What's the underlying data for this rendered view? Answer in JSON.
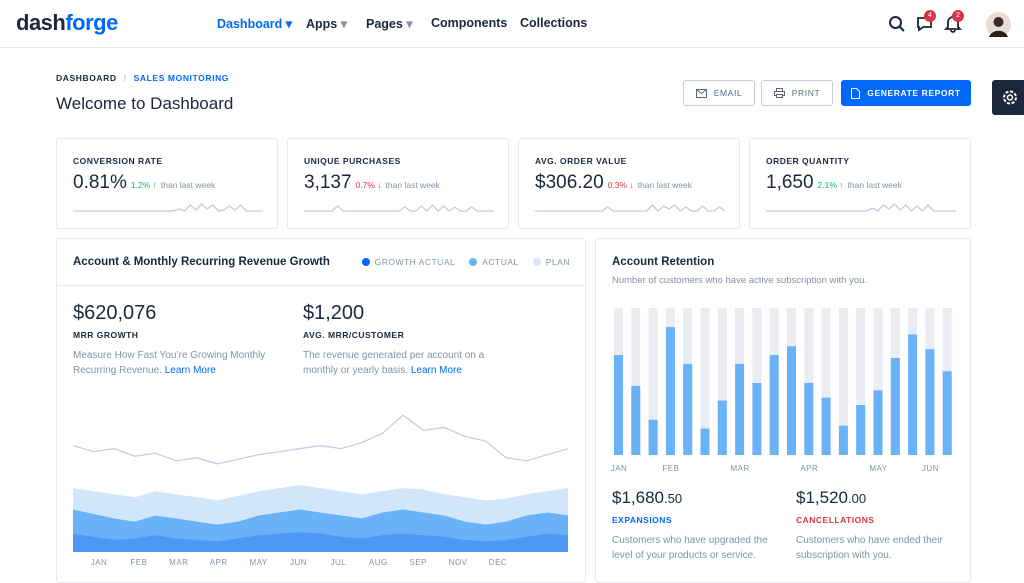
{
  "header": {
    "logo": [
      "dash",
      "forge"
    ],
    "nav": [
      "Dashboard",
      "Apps",
      "Pages",
      "Components",
      "Collections"
    ],
    "badges": [
      "4",
      "2"
    ]
  },
  "breadcrumb": [
    "DASHBOARD",
    "SALES MONITORING"
  ],
  "title": "Welcome to Dashboard",
  "buttons": [
    "EMAIL",
    "PRINT",
    "GENERATE REPORT"
  ],
  "stats": [
    {
      "label": "CONVERSION RATE",
      "value": "0.81%",
      "change": "1.2%",
      "direction": "up",
      "note": "than last week",
      "sparkline": [
        0,
        0,
        0,
        0,
        0,
        0,
        0,
        0,
        0,
        0,
        0,
        0,
        0,
        0,
        0,
        0,
        0,
        0,
        0,
        2,
        0,
        6,
        1,
        7,
        2,
        6,
        0,
        1,
        5,
        1,
        6,
        0,
        0,
        0,
        0
      ]
    },
    {
      "label": "UNIQUE PURCHASES",
      "value": "3,137",
      "change": "0.7%",
      "direction": "down",
      "note": "than last week",
      "sparkline": [
        0,
        0,
        0,
        0,
        0,
        0,
        5,
        0,
        0,
        0,
        0,
        0,
        0,
        0,
        0,
        0,
        0,
        0,
        4,
        0,
        0,
        5,
        0,
        6,
        0,
        5,
        0,
        4,
        0,
        0,
        4,
        0,
        0,
        0,
        0
      ]
    },
    {
      "label": "AVG. ORDER VALUE",
      "value": "$306.20",
      "change": "0.3%",
      "direction": "down",
      "note": "than last week",
      "sparkline": [
        0,
        0,
        0,
        0,
        0,
        0,
        0,
        0,
        0,
        0,
        0,
        0,
        0,
        4,
        0,
        0,
        0,
        0,
        0,
        0,
        0,
        6,
        0,
        5,
        2,
        6,
        0,
        4,
        0,
        0,
        5,
        0,
        0,
        4,
        0
      ]
    },
    {
      "label": "ORDER QUANTITY",
      "value": "1,650",
      "change": "2.1%",
      "direction": "up",
      "note": "than last week",
      "sparkline": [
        0,
        0,
        0,
        0,
        0,
        0,
        0,
        0,
        0,
        0,
        0,
        0,
        0,
        0,
        0,
        0,
        0,
        0,
        0,
        3,
        0,
        6,
        2,
        7,
        1,
        6,
        0,
        5,
        0,
        6,
        0,
        0,
        0,
        0,
        0
      ]
    }
  ],
  "revenue": {
    "title": "Account & Monthly Recurring Revenue Growth",
    "legend": [
      {
        "name": "GROWTH ACTUAL",
        "color": "#0168fa"
      },
      {
        "name": "ACTUAL",
        "color": "#69b2f8"
      },
      {
        "name": "PLAN",
        "color": "#d1e6fa"
      }
    ],
    "metrics": [
      {
        "value": "$620,076",
        "label": "MRR GROWTH",
        "text": "Measure How Fast You’re Growing Monthly Recurring Revenue.",
        "link": "Learn More"
      },
      {
        "value": "$1,200",
        "label": "AVG. MRR/CUSTOMER",
        "text": "The revenue generated per account on a monthly or yearly basis.",
        "link": "Learn More"
      }
    ],
    "months": [
      "JAN",
      "FEB",
      "MAR",
      "APR",
      "MAY",
      "JUN",
      "JUL",
      "AUG",
      "SEP",
      "NOV",
      "DEC"
    ],
    "ylim": [
      0,
      100
    ],
    "line": [
      70,
      66,
      68,
      63,
      65,
      60,
      62,
      58,
      61,
      64,
      66,
      68,
      70,
      68,
      72,
      78,
      90,
      80,
      82,
      76,
      73,
      62,
      60,
      64,
      68
    ],
    "plan": [
      42,
      40,
      38,
      36,
      40,
      38,
      36,
      34,
      37,
      40,
      42,
      44,
      42,
      40,
      38,
      40,
      42,
      41,
      38,
      36,
      34,
      35,
      38,
      40,
      42
    ],
    "actual": [
      28,
      25,
      22,
      20,
      24,
      22,
      20,
      18,
      20,
      24,
      26,
      28,
      26,
      24,
      22,
      26,
      28,
      26,
      24,
      20,
      18,
      20,
      24,
      26,
      24
    ],
    "growth": [
      12,
      10,
      8,
      9,
      11,
      9,
      8,
      7,
      9,
      11,
      12,
      13,
      12,
      10,
      9,
      11,
      12,
      11,
      10,
      8,
      7,
      8,
      10,
      12,
      11
    ]
  },
  "retention": {
    "title": "Account Retention",
    "subtitle": "Number of customers who have active subscription with you.",
    "ylim": [
      0,
      100
    ],
    "categories": [
      "JAN",
      null,
      null,
      "FEB",
      null,
      null,
      null,
      "MAR",
      null,
      null,
      null,
      "APR",
      null,
      null,
      null,
      "MAY",
      null,
      null,
      "JUN",
      null
    ],
    "values": [
      68,
      47,
      24,
      87,
      62,
      18,
      37,
      62,
      49,
      68,
      74,
      49,
      39,
      20,
      34,
      44,
      66,
      82,
      72,
      57
    ],
    "totals": [
      {
        "value": "$1,680",
        "cents": ".50",
        "label": "EXPANSIONS",
        "text": "Customers who have upgraded the level of your products or service."
      },
      {
        "value": "$1,520",
        "cents": ".00",
        "label": "CANCELLATIONS",
        "text": "Customers who have ended their subscription with you."
      }
    ]
  }
}
